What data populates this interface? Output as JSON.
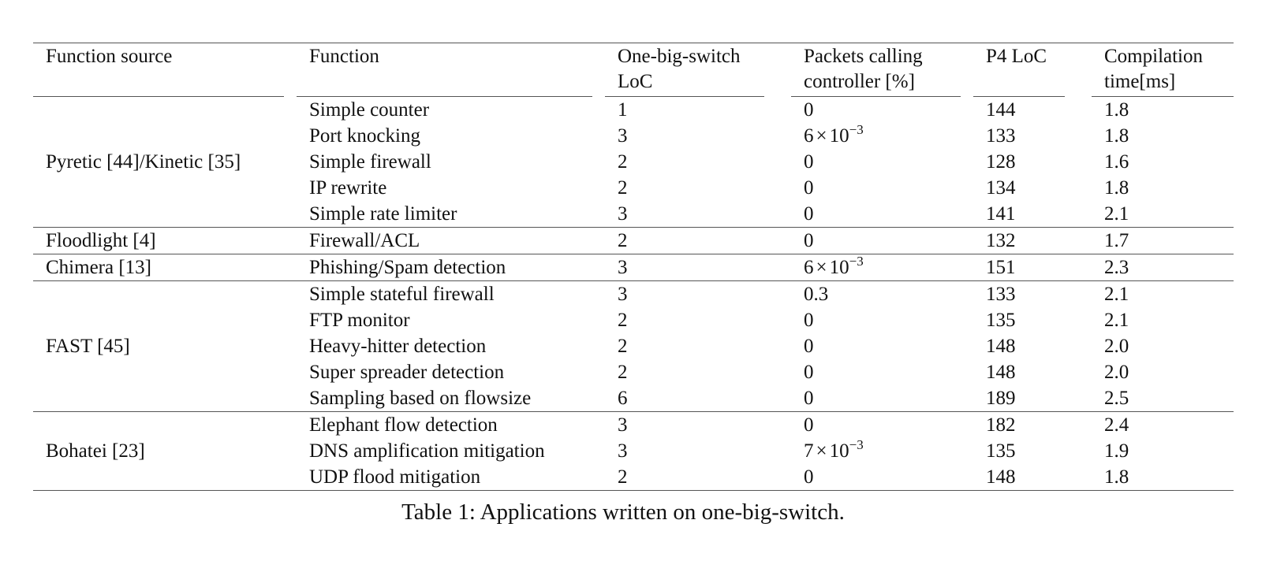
{
  "table": {
    "headers": [
      [
        "Function source"
      ],
      [
        "Function"
      ],
      [
        "One-big-switch",
        "LoC"
      ],
      [
        "Packets calling",
        "controller [%]"
      ],
      [
        "P4 LoC"
      ],
      [
        "Compilation",
        "time[ms]"
      ]
    ],
    "groups": [
      {
        "source": "Pyretic [44]/Kinetic [35]",
        "rows": [
          {
            "function": "Simple counter",
            "obs_loc": "1",
            "pct": {
              "text": "0"
            },
            "p4_loc": "144",
            "time": "1.8"
          },
          {
            "function": "Port knocking",
            "obs_loc": "3",
            "pct": {
              "mantissa": "6",
              "times": "×",
              "base": "10",
              "exp": "−3"
            },
            "p4_loc": "133",
            "time": "1.8"
          },
          {
            "function": "Simple firewall",
            "obs_loc": "2",
            "pct": {
              "text": "0"
            },
            "p4_loc": "128",
            "time": "1.6"
          },
          {
            "function": "IP rewrite",
            "obs_loc": "2",
            "pct": {
              "text": "0"
            },
            "p4_loc": "134",
            "time": "1.8"
          },
          {
            "function": "Simple rate limiter",
            "obs_loc": "3",
            "pct": {
              "text": "0"
            },
            "p4_loc": "141",
            "time": "2.1"
          }
        ]
      },
      {
        "source": "Floodlight [4]",
        "rows": [
          {
            "function": "Firewall/ACL",
            "obs_loc": "2",
            "pct": {
              "text": "0"
            },
            "p4_loc": "132",
            "time": "1.7"
          }
        ]
      },
      {
        "source": "Chimera [13]",
        "rows": [
          {
            "function": "Phishing/Spam detection",
            "obs_loc": "3",
            "pct": {
              "mantissa": "6",
              "times": "×",
              "base": "10",
              "exp": "−3"
            },
            "p4_loc": "151",
            "time": "2.3"
          }
        ]
      },
      {
        "source": "FAST [45]",
        "rows": [
          {
            "function": "Simple stateful firewall",
            "obs_loc": "3",
            "pct": {
              "text": "0.3"
            },
            "p4_loc": "133",
            "time": "2.1"
          },
          {
            "function": "FTP monitor",
            "obs_loc": "2",
            "pct": {
              "text": "0"
            },
            "p4_loc": "135",
            "time": "2.1"
          },
          {
            "function": "Heavy-hitter detection",
            "obs_loc": "2",
            "pct": {
              "text": "0"
            },
            "p4_loc": "148",
            "time": "2.0"
          },
          {
            "function": "Super spreader detection",
            "obs_loc": "2",
            "pct": {
              "text": "0"
            },
            "p4_loc": "148",
            "time": "2.0"
          },
          {
            "function": "Sampling based on flowsize",
            "obs_loc": "6",
            "pct": {
              "text": "0"
            },
            "p4_loc": "189",
            "time": "2.5"
          }
        ]
      },
      {
        "source": "Bohatei [23]",
        "rows": [
          {
            "function": "Elephant flow detection",
            "obs_loc": "3",
            "pct": {
              "text": "0"
            },
            "p4_loc": "182",
            "time": "2.4"
          },
          {
            "function": "DNS amplification mitigation",
            "obs_loc": "3",
            "pct": {
              "mantissa": "7",
              "times": "×",
              "base": "10",
              "exp": "−3"
            },
            "p4_loc": "135",
            "time": "1.9"
          },
          {
            "function": "UDP flood mitigation",
            "obs_loc": "2",
            "pct": {
              "text": "0"
            },
            "p4_loc": "148",
            "time": "1.8"
          }
        ]
      }
    ]
  },
  "caption": {
    "label": "Table 1:",
    "text": "Applications written on one-big-switch."
  }
}
